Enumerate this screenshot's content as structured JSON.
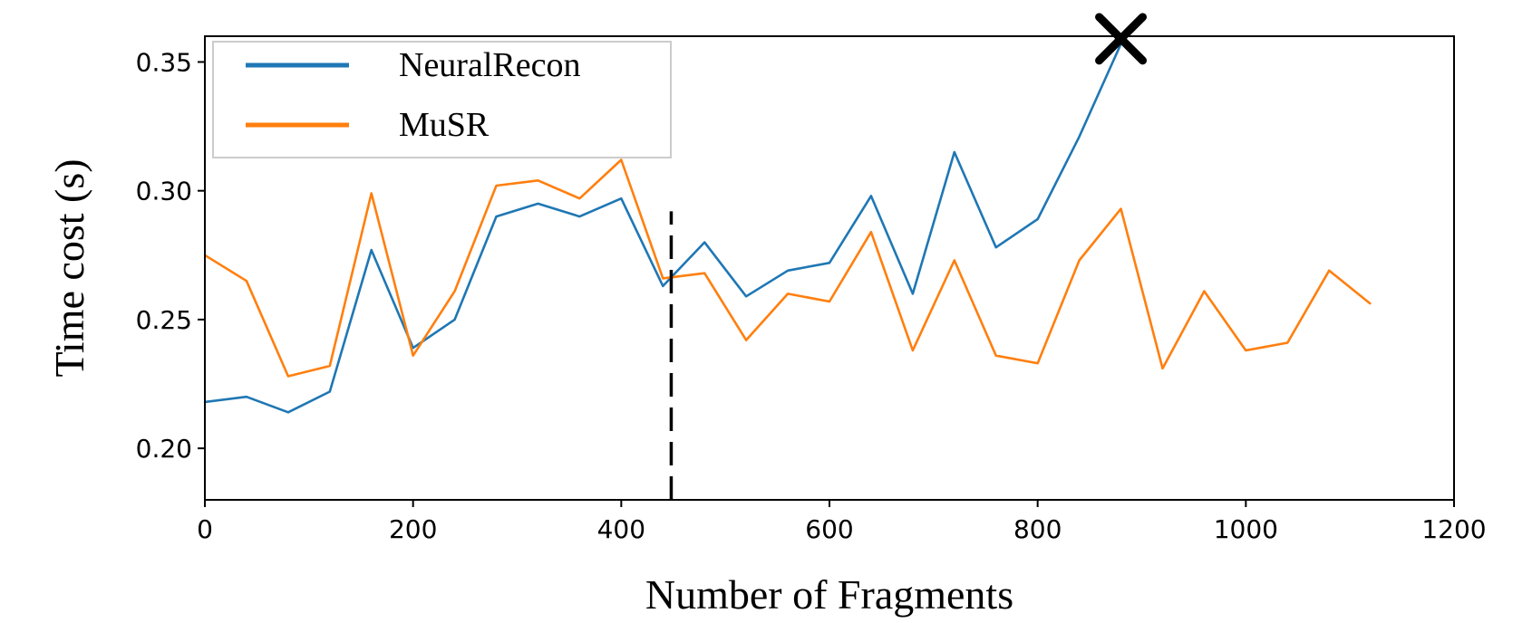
{
  "chart_data": {
    "type": "line",
    "xlabel": "Number of Fragments",
    "ylabel": "Time cost (s)",
    "xlim": [
      0,
      1200
    ],
    "ylim": [
      0.18,
      0.36
    ],
    "xticks": [
      0,
      200,
      400,
      600,
      800,
      1000,
      1200
    ],
    "xtick_labels": [
      "0",
      "200",
      "400",
      "600",
      "800",
      "1000",
      "1200"
    ],
    "yticks": [
      0.2,
      0.25,
      0.3,
      0.35
    ],
    "ytick_labels": [
      "0.20",
      "0.25",
      "0.30",
      "0.35"
    ],
    "grid": false,
    "legend": "top-left",
    "series": [
      {
        "name": "NeuralRecon",
        "color": "#1f77b4",
        "x": [
          0,
          40,
          80,
          120,
          160,
          200,
          240,
          280,
          320,
          360,
          400,
          440,
          480,
          520,
          560,
          600,
          640,
          680,
          720,
          760,
          800,
          840,
          880
        ],
        "y": [
          0.218,
          0.22,
          0.214,
          0.222,
          0.277,
          0.239,
          0.25,
          0.29,
          0.295,
          0.29,
          0.297,
          0.263,
          0.28,
          0.259,
          0.269,
          0.272,
          0.298,
          0.26,
          0.315,
          0.278,
          0.289,
          0.321,
          0.357
        ]
      },
      {
        "name": "MuSR",
        "color": "#ff7f0e",
        "x": [
          0,
          40,
          80,
          120,
          160,
          200,
          240,
          280,
          320,
          360,
          400,
          440,
          480,
          520,
          560,
          600,
          640,
          680,
          720,
          760,
          800,
          840,
          880,
          920,
          960,
          1000,
          1040,
          1080,
          1120
        ],
        "y": [
          0.275,
          0.265,
          0.228,
          0.232,
          0.299,
          0.236,
          0.261,
          0.302,
          0.304,
          0.297,
          0.312,
          0.266,
          0.268,
          0.242,
          0.26,
          0.257,
          0.284,
          0.238,
          0.273,
          0.236,
          0.233,
          0.273,
          0.293,
          0.231,
          0.261,
          0.238,
          0.241,
          0.269,
          0.256
        ]
      }
    ],
    "annotations": [
      {
        "type": "vertical-dashed-line",
        "x": 448,
        "y_range": [
          0.18,
          0.292
        ],
        "color": "#000000"
      },
      {
        "type": "x-marker",
        "x": 880,
        "y": 0.359,
        "color": "#000000"
      }
    ]
  }
}
